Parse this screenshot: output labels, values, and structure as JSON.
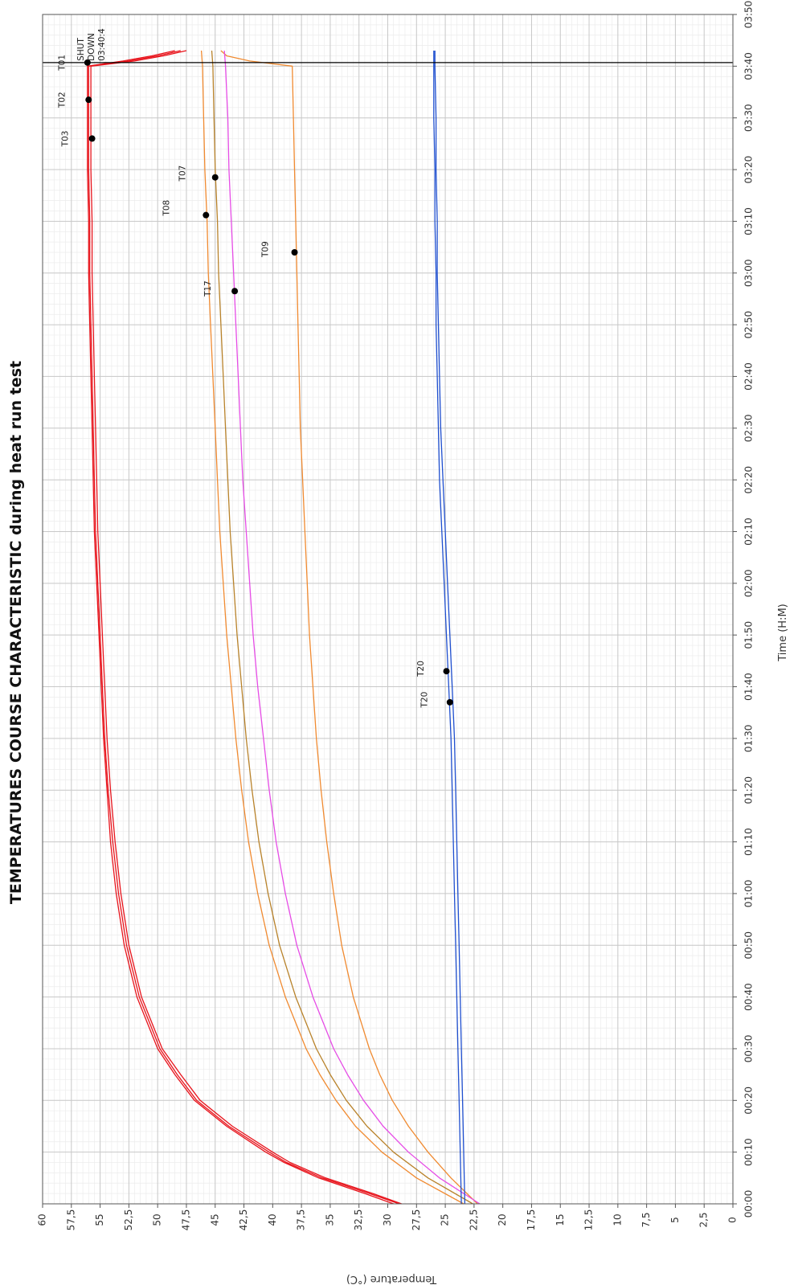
{
  "chart_data": {
    "type": "line",
    "title": "TEMPERATURES COURSE CHARACTERISTIC during heat run test",
    "xlabel": "Time (H:M)",
    "ylabel": "Temperature (°C)",
    "x_unit": "minutes",
    "xlim": [
      0,
      230
    ],
    "ylim": [
      0,
      60
    ],
    "x_ticks": [
      {
        "v": 0,
        "label": "00:00"
      },
      {
        "v": 10,
        "label": "00:10"
      },
      {
        "v": 20,
        "label": "00:20"
      },
      {
        "v": 30,
        "label": "00:30"
      },
      {
        "v": 40,
        "label": "00:40"
      },
      {
        "v": 50,
        "label": "00:50"
      },
      {
        "v": 60,
        "label": "01:00"
      },
      {
        "v": 70,
        "label": "01:10"
      },
      {
        "v": 80,
        "label": "01:20"
      },
      {
        "v": 90,
        "label": "01:30"
      },
      {
        "v": 100,
        "label": "01:40"
      },
      {
        "v": 110,
        "label": "01:50"
      },
      {
        "v": 120,
        "label": "02:00"
      },
      {
        "v": 130,
        "label": "02:10"
      },
      {
        "v": 140,
        "label": "02:20"
      },
      {
        "v": 150,
        "label": "02:30"
      },
      {
        "v": 160,
        "label": "02:40"
      },
      {
        "v": 170,
        "label": "02:50"
      },
      {
        "v": 180,
        "label": "03:00"
      },
      {
        "v": 190,
        "label": "03:10"
      },
      {
        "v": 200,
        "label": "03:20"
      },
      {
        "v": 210,
        "label": "03:30"
      },
      {
        "v": 220,
        "label": "03:40"
      },
      {
        "v": 230,
        "label": "03:50"
      }
    ],
    "y_ticks": [
      {
        "v": 0,
        "label": "0"
      },
      {
        "v": 2.5,
        "label": "2,5"
      },
      {
        "v": 5,
        "label": "5"
      },
      {
        "v": 7.5,
        "label": "7,5"
      },
      {
        "v": 10,
        "label": "10"
      },
      {
        "v": 12.5,
        "label": "12,5"
      },
      {
        "v": 15,
        "label": "15"
      },
      {
        "v": 17.5,
        "label": "17,5"
      },
      {
        "v": 20,
        "label": "20"
      },
      {
        "v": 22.5,
        "label": "22,5"
      },
      {
        "v": 25,
        "label": "25"
      },
      {
        "v": 27.5,
        "label": "27,5"
      },
      {
        "v": 30,
        "label": "30"
      },
      {
        "v": 32.5,
        "label": "32,5"
      },
      {
        "v": 35,
        "label": "35"
      },
      {
        "v": 37.5,
        "label": "37,5"
      },
      {
        "v": 40,
        "label": "40"
      },
      {
        "v": 42.5,
        "label": "42,5"
      },
      {
        "v": 45,
        "label": "45"
      },
      {
        "v": 47.5,
        "label": "47,5"
      },
      {
        "v": 50,
        "label": "50"
      },
      {
        "v": 52.5,
        "label": "52,5"
      },
      {
        "v": 55,
        "label": "55"
      },
      {
        "v": 57.5,
        "label": "57,5"
      },
      {
        "v": 60,
        "label": "60"
      }
    ],
    "grid": true,
    "orientation": "rotated 90° counter-clockwise",
    "series": [
      {
        "name": "T01",
        "color": "#e8141c",
        "x": [
          0,
          2,
          5,
          8,
          10,
          15,
          20,
          25,
          30,
          40,
          50,
          60,
          70,
          80,
          90,
          100,
          110,
          120,
          130,
          140,
          150,
          160,
          170,
          180,
          190,
          200,
          210,
          220,
          221,
          222,
          223
        ],
        "y": [
          29.5,
          32,
          36,
          39,
          40.6,
          44,
          46.8,
          48.5,
          50,
          51.8,
          52.9,
          53.6,
          54.1,
          54.4,
          54.7,
          54.9,
          55.1,
          55.3,
          55.5,
          55.6,
          55.7,
          55.8,
          55.9,
          56,
          56,
          56.1,
          56.1,
          56.1,
          53,
          50.5,
          48.5
        ]
      },
      {
        "name": "T02",
        "color": "#e8141c",
        "x": [
          0,
          2,
          5,
          8,
          10,
          15,
          20,
          25,
          30,
          40,
          50,
          60,
          70,
          80,
          90,
          100,
          110,
          120,
          130,
          140,
          150,
          160,
          170,
          180,
          190,
          200,
          210,
          220,
          221,
          222,
          223
        ],
        "y": [
          29,
          31.6,
          35.7,
          38.8,
          40.3,
          43.8,
          46.6,
          48.3,
          49.8,
          51.6,
          52.7,
          53.4,
          53.9,
          54.3,
          54.6,
          54.8,
          55,
          55.2,
          55.4,
          55.5,
          55.6,
          55.7,
          55.8,
          55.9,
          55.9,
          56,
          56,
          56,
          52.5,
          50,
          48
        ]
      },
      {
        "name": "T03",
        "color": "#e8141c",
        "x": [
          0,
          2,
          5,
          8,
          10,
          15,
          20,
          25,
          30,
          40,
          50,
          60,
          70,
          80,
          90,
          100,
          110,
          120,
          130,
          140,
          150,
          160,
          170,
          180,
          190,
          200,
          210,
          220,
          221,
          222,
          223
        ],
        "y": [
          28.8,
          31.3,
          35.4,
          38.5,
          40,
          43.5,
          46.3,
          48,
          49.6,
          51.4,
          52.5,
          53.2,
          53.7,
          54.1,
          54.4,
          54.6,
          54.8,
          55,
          55.2,
          55.3,
          55.4,
          55.5,
          55.6,
          55.7,
          55.7,
          55.8,
          55.8,
          55.8,
          52,
          49.5,
          47.5
        ]
      },
      {
        "name": "T07",
        "color": "#b8822a",
        "x": [
          0,
          5,
          10,
          15,
          20,
          25,
          30,
          40,
          50,
          60,
          70,
          80,
          90,
          100,
          110,
          120,
          130,
          140,
          150,
          160,
          170,
          180,
          190,
          200,
          210,
          220,
          223
        ],
        "y": [
          22.6,
          26.5,
          29.5,
          31.8,
          33.6,
          35,
          36.2,
          38,
          39.4,
          40.4,
          41.2,
          41.8,
          42.3,
          42.7,
          43.1,
          43.4,
          43.7,
          43.9,
          44.1,
          44.3,
          44.5,
          44.7,
          44.8,
          45,
          45.1,
          45.2,
          45.3
        ]
      },
      {
        "name": "T08",
        "color": "#f08a30",
        "x": [
          0,
          5,
          10,
          15,
          20,
          25,
          30,
          40,
          50,
          60,
          70,
          80,
          90,
          100,
          110,
          120,
          130,
          140,
          150,
          160,
          170,
          180,
          190,
          200,
          210,
          220,
          223
        ],
        "y": [
          23.4,
          27.5,
          30.5,
          32.8,
          34.5,
          35.9,
          37.1,
          38.9,
          40.3,
          41.3,
          42.1,
          42.7,
          43.2,
          43.6,
          44,
          44.3,
          44.6,
          44.8,
          45,
          45.2,
          45.4,
          45.6,
          45.7,
          45.9,
          46,
          46.1,
          46.2
        ]
      },
      {
        "name": "T09",
        "color": "#f08a30",
        "x": [
          0,
          5,
          10,
          15,
          20,
          25,
          30,
          40,
          50,
          60,
          70,
          80,
          90,
          100,
          110,
          120,
          130,
          140,
          150,
          160,
          170,
          180,
          190,
          200,
          210,
          220,
          221,
          222,
          223
        ],
        "y": [
          22.2,
          24.5,
          26.5,
          28.2,
          29.6,
          30.7,
          31.6,
          33,
          34,
          34.7,
          35.3,
          35.8,
          36.2,
          36.5,
          36.8,
          37,
          37.2,
          37.4,
          37.6,
          37.7,
          37.8,
          37.9,
          38,
          38.1,
          38.2,
          38.3,
          42,
          44,
          44.5
        ]
      },
      {
        "name": "T17",
        "color": "#e64ce6",
        "x": [
          0,
          5,
          10,
          15,
          20,
          25,
          30,
          40,
          50,
          60,
          70,
          80,
          90,
          100,
          110,
          120,
          130,
          140,
          150,
          160,
          170,
          180,
          190,
          200,
          210,
          220,
          223
        ],
        "y": [
          22,
          25.5,
          28.2,
          30.4,
          32.1,
          33.5,
          34.7,
          36.5,
          37.9,
          38.9,
          39.7,
          40.3,
          40.8,
          41.3,
          41.7,
          42,
          42.3,
          42.6,
          42.8,
          43,
          43.2,
          43.4,
          43.6,
          43.8,
          43.9,
          44.1,
          44.2
        ]
      },
      {
        "name": "T20",
        "color": "#1f4fcf",
        "x": [
          0,
          10,
          20,
          30,
          40,
          50,
          60,
          70,
          80,
          90,
          100,
          110,
          120,
          130,
          140,
          150,
          160,
          170,
          180,
          190,
          200,
          210,
          220,
          223
        ],
        "y": [
          23.6,
          23.7,
          23.8,
          23.9,
          24,
          24.1,
          24.2,
          24.3,
          24.4,
          24.5,
          24.7,
          24.9,
          25.1,
          25.3,
          25.5,
          25.6,
          25.7,
          25.8,
          25.8,
          25.9,
          25.9,
          26,
          26,
          26
        ]
      },
      {
        "name": "T20",
        "color": "#1f4fcf",
        "x": [
          0,
          10,
          20,
          30,
          40,
          50,
          60,
          70,
          80,
          90,
          100,
          110,
          120,
          130,
          140,
          150,
          160,
          170,
          180,
          190,
          200,
          210,
          220,
          223
        ],
        "y": [
          23.3,
          23.4,
          23.5,
          23.6,
          23.7,
          23.8,
          23.9,
          24,
          24.1,
          24.2,
          24.4,
          24.6,
          24.8,
          25,
          25.2,
          25.4,
          25.5,
          25.6,
          25.7,
          25.7,
          25.8,
          25.8,
          25.9,
          25.9
        ]
      }
    ],
    "markers": [
      {
        "x": 220.7,
        "y": 56.1
      },
      {
        "x": 213.5,
        "y": 56.0
      },
      {
        "x": 206,
        "y": 55.7
      },
      {
        "x": 198.5,
        "y": 45.0
      },
      {
        "x": 191.2,
        "y": 45.8
      },
      {
        "x": 184,
        "y": 38.1
      },
      {
        "x": 176.5,
        "y": 43.3
      },
      {
        "x": 103,
        "y": 24.9
      },
      {
        "x": 97,
        "y": 24.6
      }
    ],
    "annotations": [
      {
        "text": "T01",
        "x": 220.7,
        "y": 58.3
      },
      {
        "text": "T02",
        "x": 213.5,
        "y": 58.3
      },
      {
        "text": "T03",
        "x": 206,
        "y": 58.0
      },
      {
        "text": "T07",
        "x": 199.3,
        "y": 47.8
      },
      {
        "text": "T08",
        "x": 192.6,
        "y": 49.2
      },
      {
        "text": "T09",
        "x": 184.6,
        "y": 40.6
      },
      {
        "text": "T17",
        "x": 177,
        "y": 45.6
      },
      {
        "text": "T20",
        "x": 103.5,
        "y": 27.1
      },
      {
        "text": "T20",
        "x": 97.5,
        "y": 26.8
      }
    ],
    "shutdown": {
      "x": 220.7,
      "lines": [
        "SHUT",
        "DOWN",
        "03:40:4"
      ]
    }
  }
}
